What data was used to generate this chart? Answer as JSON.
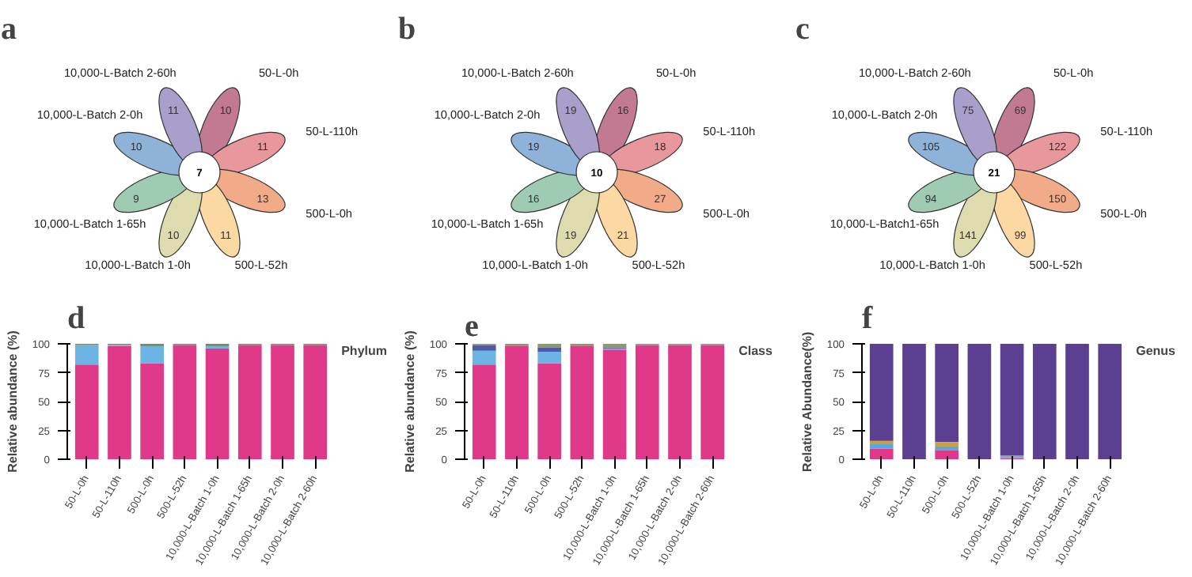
{
  "chart_data": [
    {
      "type": "other",
      "title": "a",
      "categories": [
        "50-L-0h",
        "50-L-110h",
        "500-L-0h",
        "500-L-52h",
        "10,000-L-Batch 1-0h",
        "10,000-L-Batch 1-65h",
        "10,000-L-Batch 2-0h",
        "10,000-L-Batch 2-60h"
      ],
      "values": [
        10,
        11,
        13,
        11,
        10,
        9,
        10,
        11
      ],
      "data_labels": true,
      "colors": [
        "#c27a92",
        "#e8979d",
        "#f2ab88",
        "#fcd9a2",
        "#dedcae",
        "#9fcbb2",
        "#8fb2d8",
        "#a99fcb"
      ],
      "annotations": [
        "7"
      ]
    },
    {
      "type": "other",
      "title": "b",
      "categories": [
        "50-L-0h",
        "50-L-110h",
        "500-L-0h",
        "500-L-52h",
        "10,000-L-Batch 1-0h",
        "10,000-L-Batch 1-65h",
        "10,000-L-Batch 2-0h",
        "10,000-L-Batch 2-60h"
      ],
      "values": [
        16,
        18,
        27,
        21,
        19,
        16,
        19,
        19
      ],
      "data_labels": true,
      "colors": [
        "#c27a92",
        "#e8979d",
        "#f2ab88",
        "#fcd9a2",
        "#dedcae",
        "#9fcbb2",
        "#8fb2d8",
        "#a99fcb"
      ],
      "annotations": [
        "10"
      ]
    },
    {
      "type": "other",
      "title": "c",
      "categories": [
        "50-L-0h",
        "50-L-110h",
        "500-L-0h",
        "500-L-52h",
        "10,000-L-Batch 1-0h",
        "10,000-L-Batch1-65h",
        "10,000-L-Batch 2-0h",
        "10,000-L-Batch 2-60h"
      ],
      "values": [
        69,
        122,
        150,
        99,
        141,
        94,
        105,
        75
      ],
      "data_labels": true,
      "colors": [
        "#c27a92",
        "#e8979d",
        "#f2ab88",
        "#fcd9a2",
        "#dedcae",
        "#9fcbb2",
        "#8fb2d8",
        "#a99fcb"
      ],
      "annotations": [
        "21"
      ]
    },
    {
      "type": "bar",
      "title": "d",
      "stacked": true,
      "ylabel": "Relative abundance (%)",
      "legend_title": "Phylum",
      "categories": [
        "50-L-0h",
        "50-L-110h",
        "500-L-0h",
        "500-L-52h",
        "10,000-L-Batch 1-0h",
        "10,000-L-Batch 1-65h",
        "10,000-L-Batch 2-0h",
        "10,000-L-Batch 2-60h"
      ],
      "ylim": [
        0,
        100
      ],
      "yticks": [
        0,
        25,
        50,
        75,
        100
      ],
      "grid": false,
      "series": [
        {
          "color": "#e0398a",
          "values": [
            82,
            98,
            83,
            99,
            96,
            99,
            99,
            99
          ]
        },
        {
          "color": "#6cb4e4",
          "values": [
            17,
            1,
            15,
            0,
            2,
            0,
            0,
            0
          ]
        },
        {
          "color": "#7a8a5a",
          "values": [
            1,
            1,
            2,
            1,
            2,
            1,
            1,
            1
          ]
        }
      ]
    },
    {
      "type": "bar",
      "title": "e",
      "stacked": true,
      "ylabel": "Relative abundance (%)",
      "legend_title": "Class",
      "categories": [
        "50-L-0h",
        "50-L-110h",
        "500-L-0h",
        "500-L-52h",
        "10,000-L-Batch 1-0h",
        "10,000-L-Batch 1-65h",
        "10,000-L-Batch 2-0h",
        "10,000-L-Batch 2-60h"
      ],
      "ylim": [
        0,
        100
      ],
      "yticks": [
        0,
        25,
        50,
        75,
        100
      ],
      "grid": false,
      "series": [
        {
          "color": "#e0398a",
          "values": [
            82,
            98,
            83,
            98,
            95,
            99,
            99,
            99
          ]
        },
        {
          "color": "#6cb4e4",
          "values": [
            12,
            0,
            10,
            0,
            1,
            0,
            0,
            0
          ]
        },
        {
          "color": "#4c5aa8",
          "values": [
            5,
            0,
            4,
            0,
            1,
            0,
            0,
            0
          ]
        },
        {
          "color": "#8a9a6a",
          "values": [
            1,
            2,
            3,
            2,
            3,
            1,
            1,
            1
          ]
        }
      ]
    },
    {
      "type": "bar",
      "title": "f",
      "stacked": true,
      "ylabel": "Relative Abundance(%)",
      "legend_title": "Genus",
      "categories": [
        "50-L-0h",
        "50-L-110h",
        "500-L-0h",
        "500-L-52h",
        "10,000-L-Batch 1-0h",
        "10,000-L-Batch 1-65h",
        "10,000-L-Batch 2-0h",
        "10,000-L-Batch 2-60h"
      ],
      "ylim": [
        0,
        100
      ],
      "yticks": [
        0,
        25,
        50,
        75,
        100
      ],
      "grid": false,
      "series": [
        {
          "color": "#e0398a",
          "values": [
            9,
            0,
            8,
            0,
            1,
            0,
            0,
            0
          ]
        },
        {
          "color": "#5aa8e0",
          "values": [
            4,
            0,
            3,
            0,
            1,
            0,
            0,
            0
          ]
        },
        {
          "color": "#c8a040",
          "values": [
            3,
            0,
            4,
            0,
            1,
            0,
            0,
            0
          ]
        },
        {
          "color": "#5b3f91",
          "values": [
            84,
            100,
            85,
            100,
            97,
            100,
            100,
            100
          ]
        }
      ]
    }
  ]
}
